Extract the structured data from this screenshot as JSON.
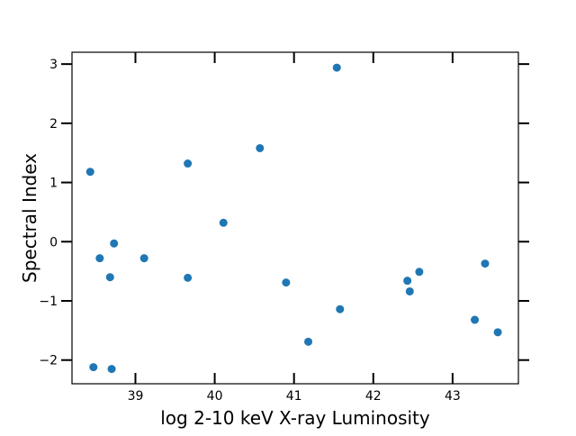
{
  "chart_data": {
    "type": "scatter",
    "title": "",
    "xlabel": "log 2-10 keV X-ray Luminosity",
    "ylabel": "Spectral Index",
    "xlim": [
      38.2,
      43.83
    ],
    "ylim": [
      -2.4,
      3.2
    ],
    "xticks": [
      39,
      40,
      41,
      42,
      43
    ],
    "yticks": [
      -2,
      -1,
      0,
      1,
      2,
      3
    ],
    "grid": false,
    "marker_color": "#1f77b4",
    "points": [
      {
        "x": 38.43,
        "y": 1.18
      },
      {
        "x": 38.47,
        "y": -2.12
      },
      {
        "x": 38.55,
        "y": -0.28
      },
      {
        "x": 38.68,
        "y": -0.6
      },
      {
        "x": 38.7,
        "y": -2.15
      },
      {
        "x": 38.73,
        "y": -0.03
      },
      {
        "x": 39.11,
        "y": -0.28
      },
      {
        "x": 39.66,
        "y": 1.32
      },
      {
        "x": 39.66,
        "y": -0.61
      },
      {
        "x": 40.11,
        "y": 0.32
      },
      {
        "x": 40.57,
        "y": 1.58
      },
      {
        "x": 40.9,
        "y": -0.69
      },
      {
        "x": 41.18,
        "y": -1.69
      },
      {
        "x": 41.54,
        "y": 2.94
      },
      {
        "x": 41.58,
        "y": -1.14
      },
      {
        "x": 42.43,
        "y": -0.66
      },
      {
        "x": 42.46,
        "y": -0.84
      },
      {
        "x": 42.58,
        "y": -0.51
      },
      {
        "x": 43.28,
        "y": -1.32
      },
      {
        "x": 43.41,
        "y": -0.37
      },
      {
        "x": 43.57,
        "y": -1.53
      }
    ]
  }
}
